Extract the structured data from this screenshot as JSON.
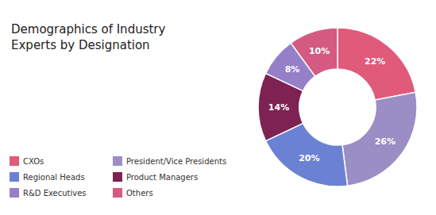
{
  "chart_data": {
    "type": "donut",
    "title": "Demographics of Industry\nExperts by Designation",
    "categories": [
      "CXOs",
      "President/Vice Presidents",
      "Regional Heads",
      "Product Managers",
      "R&D Executives",
      "Others"
    ],
    "values": [
      22,
      26,
      20,
      14,
      8,
      10
    ],
    "value_labels": [
      "22%",
      "26%",
      "20%",
      "14%",
      "8%",
      "10%"
    ],
    "colors": [
      "#E05A7A",
      "#9B8EC4",
      "#6B82D4",
      "#7D2252",
      "#9580C8",
      "#D45A82"
    ],
    "data_labels": true,
    "legend": "lower left"
  }
}
